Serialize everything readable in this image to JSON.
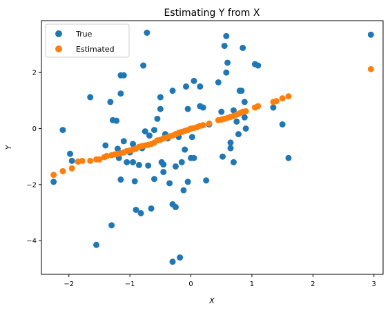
{
  "chart_data": {
    "type": "scatter",
    "title": "Estimating Y from X",
    "xlabel": "X",
    "ylabel": "Y",
    "xlim": [
      -2.45,
      3.15
    ],
    "ylim": [
      -5.2,
      3.85
    ],
    "xticks": [
      -2,
      -1,
      0,
      1,
      2,
      3
    ],
    "yticks": [
      -4,
      -2,
      0,
      2
    ],
    "xtick_labels": [
      "−2",
      "−1",
      "0",
      "1",
      "2",
      "3"
    ],
    "ytick_labels": [
      "−4",
      "−2",
      "0",
      "2"
    ],
    "grid": false,
    "legend": {
      "placement": "top-left",
      "entries": [
        "True",
        "Estimated"
      ]
    },
    "series": [
      {
        "name": "True",
        "color": "#1f77b4",
        "points": [
          [
            -2.25,
            -1.9
          ],
          [
            -2.1,
            -0.05
          ],
          [
            -1.95,
            -1.15
          ],
          [
            -1.98,
            -0.9
          ],
          [
            -1.65,
            1.12
          ],
          [
            -1.55,
            -4.15
          ],
          [
            -1.4,
            -0.6
          ],
          [
            -1.32,
            0.95
          ],
          [
            -1.3,
            -3.45
          ],
          [
            -1.28,
            0.3
          ],
          [
            -1.22,
            0.28
          ],
          [
            -1.2,
            -0.72
          ],
          [
            -1.18,
            -1.05
          ],
          [
            -1.15,
            1.9
          ],
          [
            -1.1,
            1.9
          ],
          [
            -1.15,
            1.25
          ],
          [
            -1.15,
            -1.82
          ],
          [
            -1.1,
            -0.45
          ],
          [
            -1.05,
            -1.2
          ],
          [
            -1.0,
            -0.85
          ],
          [
            -0.95,
            -0.55
          ],
          [
            -0.95,
            -1.2
          ],
          [
            -0.92,
            -1.88
          ],
          [
            -0.9,
            -2.9
          ],
          [
            -0.85,
            -1.3
          ],
          [
            -0.82,
            -3.02
          ],
          [
            -0.8,
            -0.7
          ],
          [
            -0.78,
            2.25
          ],
          [
            -0.75,
            -0.1
          ],
          [
            -0.7,
            -1.32
          ],
          [
            -0.72,
            3.42
          ],
          [
            -0.68,
            -0.25
          ],
          [
            -0.65,
            -2.85
          ],
          [
            -0.6,
            -1.8
          ],
          [
            -0.55,
            0.35
          ],
          [
            -0.5,
            1.12
          ],
          [
            -0.5,
            0.7
          ],
          [
            -0.48,
            -1.2
          ],
          [
            -0.45,
            -1.55
          ],
          [
            -0.45,
            -1.28
          ],
          [
            -0.42,
            -0.2
          ],
          [
            -0.38,
            -0.35
          ],
          [
            -0.35,
            -1.95
          ],
          [
            -0.3,
            1.35
          ],
          [
            -0.3,
            -2.7
          ],
          [
            -0.25,
            -1.35
          ],
          [
            -0.25,
            -2.8
          ],
          [
            -0.18,
            -4.6
          ],
          [
            -0.2,
            -0.3
          ],
          [
            -0.15,
            -1.2
          ],
          [
            -0.12,
            -2.2
          ],
          [
            -0.1,
            -0.75
          ],
          [
            -0.08,
            1.5
          ],
          [
            -0.05,
            -1.9
          ],
          [
            -0.05,
            0.7
          ],
          [
            0.0,
            -1.05
          ],
          [
            0.02,
            -0.3
          ],
          [
            0.05,
            -1.05
          ],
          [
            0.05,
            1.7
          ],
          [
            0.15,
            1.5
          ],
          [
            0.15,
            0.8
          ],
          [
            0.2,
            0.75
          ],
          [
            0.25,
            -1.85
          ],
          [
            0.45,
            1.65
          ],
          [
            0.5,
            0.6
          ],
          [
            0.52,
            -1.0
          ],
          [
            0.55,
            2.95
          ],
          [
            0.58,
            3.3
          ],
          [
            0.58,
            2.0
          ],
          [
            0.6,
            2.35
          ],
          [
            0.65,
            -0.5
          ],
          [
            0.65,
            -0.7
          ],
          [
            0.7,
            -1.2
          ],
          [
            0.75,
            0.25
          ],
          [
            0.78,
            -0.2
          ],
          [
            0.8,
            1.35
          ],
          [
            0.83,
            1.35
          ],
          [
            0.85,
            2.88
          ],
          [
            0.88,
            0.4
          ],
          [
            0.88,
            0.95
          ],
          [
            0.9,
            0.0
          ],
          [
            1.05,
            2.3
          ],
          [
            1.1,
            2.25
          ],
          [
            1.35,
            0.75
          ],
          [
            1.5,
            0.15
          ],
          [
            1.6,
            -1.05
          ],
          [
            2.95,
            3.35
          ],
          [
            -0.3,
            -4.75
          ],
          [
            0.7,
            0.65
          ],
          [
            -0.6,
            -0.05
          ],
          [
            0.3,
            0.15
          ]
        ]
      },
      {
        "name": "Estimated",
        "color": "#ff7f0e",
        "points": [
          [
            -2.25,
            -1.65
          ],
          [
            -2.1,
            -1.52
          ],
          [
            -1.95,
            -1.42
          ],
          [
            -1.85,
            -1.18
          ],
          [
            -1.78,
            -1.15
          ],
          [
            -1.65,
            -1.15
          ],
          [
            -1.55,
            -1.1
          ],
          [
            -1.5,
            -1.1
          ],
          [
            -1.42,
            -1.02
          ],
          [
            -1.38,
            -0.98
          ],
          [
            -1.3,
            -0.95
          ],
          [
            -1.25,
            -0.92
          ],
          [
            -1.2,
            -0.9
          ],
          [
            -1.15,
            -0.88
          ],
          [
            -1.1,
            -0.85
          ],
          [
            -1.05,
            -0.8
          ],
          [
            -1.0,
            -0.78
          ],
          [
            -0.95,
            -0.75
          ],
          [
            -0.9,
            -0.72
          ],
          [
            -0.85,
            -0.65
          ],
          [
            -0.8,
            -0.62
          ],
          [
            -0.75,
            -0.6
          ],
          [
            -0.7,
            -0.58
          ],
          [
            -0.65,
            -0.55
          ],
          [
            -0.6,
            -0.5
          ],
          [
            -0.55,
            -0.42
          ],
          [
            -0.5,
            -0.4
          ],
          [
            -0.45,
            -0.35
          ],
          [
            -0.4,
            -0.32
          ],
          [
            -0.35,
            -0.28
          ],
          [
            -0.3,
            -0.25
          ],
          [
            -0.25,
            -0.2
          ],
          [
            -0.2,
            -0.15
          ],
          [
            -0.15,
            -0.12
          ],
          [
            -0.1,
            -0.08
          ],
          [
            -0.05,
            -0.05
          ],
          [
            0.0,
            0.0
          ],
          [
            0.05,
            0.02
          ],
          [
            0.1,
            0.05
          ],
          [
            0.15,
            0.1
          ],
          [
            0.2,
            0.12
          ],
          [
            0.3,
            0.18
          ],
          [
            0.45,
            0.3
          ],
          [
            0.5,
            0.32
          ],
          [
            0.55,
            0.35
          ],
          [
            0.6,
            0.38
          ],
          [
            0.65,
            0.42
          ],
          [
            0.7,
            0.45
          ],
          [
            0.75,
            0.5
          ],
          [
            0.8,
            0.55
          ],
          [
            0.85,
            0.6
          ],
          [
            0.9,
            0.62
          ],
          [
            1.05,
            0.75
          ],
          [
            1.1,
            0.8
          ],
          [
            1.35,
            0.95
          ],
          [
            1.4,
            0.98
          ],
          [
            1.5,
            1.08
          ],
          [
            1.6,
            1.15
          ],
          [
            2.95,
            2.12
          ]
        ]
      }
    ]
  }
}
